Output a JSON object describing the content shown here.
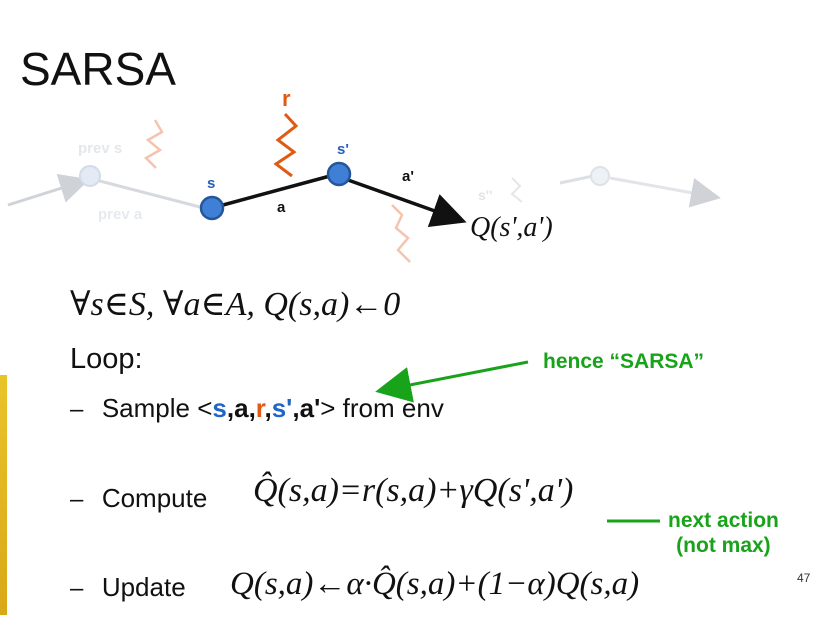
{
  "slide": {
    "title": "SARSA",
    "page_number": "47"
  },
  "diagram": {
    "ghost_prev_state": "prev s",
    "ghost_prev_action": "prev a",
    "state_s": "s",
    "action_a": "a",
    "reward_r": "r",
    "state_s_prime": "s'",
    "action_a_prime": "a'",
    "ghost_next_state": "s''",
    "target_q": "Q(s',a')"
  },
  "init_formula": "∀s∈S, ∀a∈A, Q(s,a)←0",
  "loop": {
    "label": "Loop:",
    "sample": {
      "dash": "–",
      "prefix": "Sample <",
      "t_s": "s",
      "t_c1": ",",
      "t_a": "a",
      "t_c2": ",",
      "t_r": "r",
      "t_c3": ",",
      "t_sp": "s'",
      "t_c4": ",",
      "t_ap": "a'",
      "suffix": "> from env"
    },
    "compute": {
      "dash": "–",
      "label": "Compute",
      "formula": "Q̂(s,a)=r(s,a)+γQ(s',a')"
    },
    "update": {
      "dash": "–",
      "label": "Update",
      "formula": "Q(s,a)←α·Q̂(s,a)+(1−α)Q(s,a)"
    }
  },
  "annotations": {
    "hence": "hence “SARSA”",
    "next_action_line1": "next action",
    "next_action_line2": "(not max)"
  },
  "colors": {
    "node_blue": "#3f7fd6",
    "reward_orange": "#e05a14",
    "annotation_green": "#18a31a"
  }
}
